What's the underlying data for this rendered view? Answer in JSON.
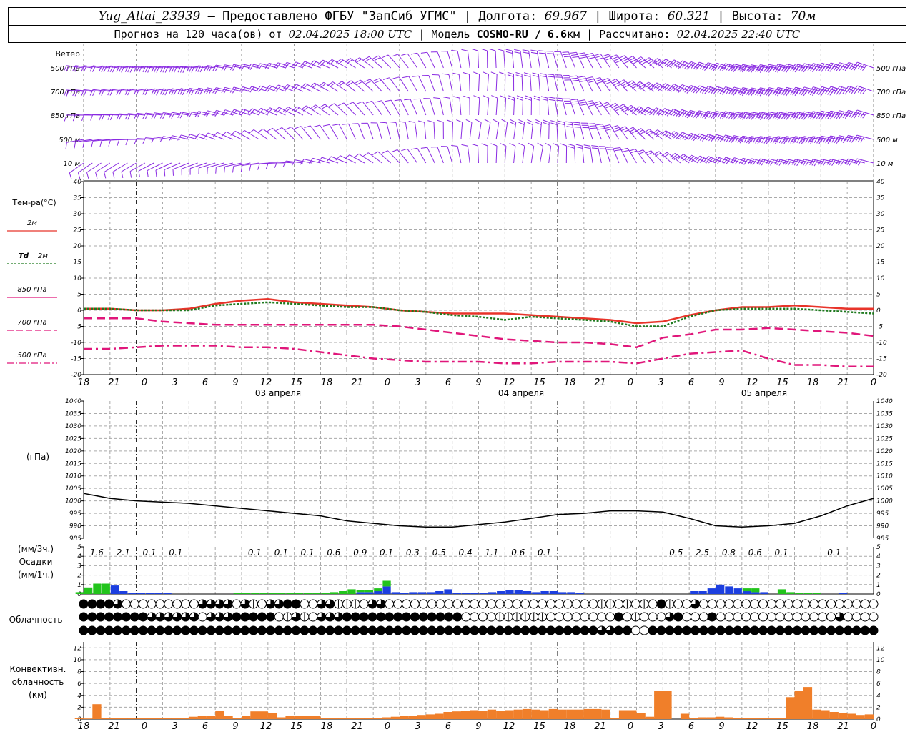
{
  "header": {
    "station": "Yug_Altai_23939",
    "provider": "– Предоставлено ФГБУ \"ЗапСиб УГМС\" |",
    "lon_label": "Долгота:",
    "lon": "69.967",
    "lat_label": "| Широта:",
    "lat": "60.321",
    "alt_label": "| Высота:",
    "alt": "70м",
    "fc_label": "Прогноз на 120 часа(ов) от",
    "fc_time": "02.04.2025 18:00 UTC",
    "model_label": "| Модель",
    "model": "COSMO-RU / 6.6",
    "model_unit": "км",
    "calc_label": "| Рассчитано:",
    "calc_time": "02.04.2025 22:40 UTC"
  },
  "colors": {
    "wind": "#8a2be2",
    "t2m": "#e8342a",
    "td2m": "#1e7a1e",
    "t850": "#e0167a",
    "t700": "#e0167a",
    "t500": "#e0167a",
    "precip_rain": "#1c3fe0",
    "precip_snow": "#22c41c",
    "conv": "#f07f2a"
  },
  "x_ticks": [
    "18",
    "21",
    "0",
    "3",
    "6",
    "9",
    "12",
    "15",
    "18",
    "21",
    "0",
    "3",
    "6",
    "9",
    "12",
    "15",
    "18",
    "21",
    "0",
    "3",
    "6",
    "9",
    "12",
    "15",
    "18",
    "21",
    "0"
  ],
  "day_labels": [
    "03 апреля",
    "04 апреля",
    "05 апреля"
  ],
  "wind": {
    "title": "Ветер",
    "levels": [
      "500 гПа",
      "700 гПа",
      "850 гПа",
      "500 м",
      "10 м"
    ]
  },
  "temp": {
    "title": "Тем-ра(°C)",
    "ylim": [
      -20,
      40
    ],
    "yticks": [
      "40",
      "35",
      "30",
      "25",
      "20",
      "15",
      "10",
      "5",
      "0",
      "-5",
      "-10",
      "-15",
      "-20"
    ],
    "legend": [
      {
        "label": "2м",
        "italic": ""
      },
      {
        "label": "2м",
        "italic": "Td"
      },
      {
        "label": "850 гПа",
        "italic": ""
      },
      {
        "label": "700 гПа",
        "italic": ""
      },
      {
        "label": "500 гПа",
        "italic": ""
      }
    ]
  },
  "pressure": {
    "title1": "Давление",
    "title2": "(гПа)",
    "ylim": [
      985,
      1040
    ],
    "yticks": [
      "1040",
      "1035",
      "1030",
      "1025",
      "1020",
      "1015",
      "1010",
      "1005",
      "1000",
      "995",
      "990",
      "985"
    ]
  },
  "precip": {
    "label_left1": "(мм/3ч.)",
    "label_left2": "Осадки",
    "label_left3": "(мм/1ч.)",
    "yticks": [
      "5",
      "4",
      "3",
      "2",
      "1",
      "0"
    ],
    "sums3h": [
      {
        "h": 3,
        "v": "1.6"
      },
      {
        "h": 6,
        "v": "2.1"
      },
      {
        "h": 9,
        "v": "0.1"
      },
      {
        "h": 12,
        "v": "0.1"
      },
      {
        "h": 21,
        "v": "0.1"
      },
      {
        "h": 24,
        "v": "0.1"
      },
      {
        "h": 27,
        "v": "0.1"
      },
      {
        "h": 30,
        "v": "0.6"
      },
      {
        "h": 33,
        "v": "0.9"
      },
      {
        "h": 36,
        "v": "0.1"
      },
      {
        "h": 39,
        "v": "0.3"
      },
      {
        "h": 42,
        "v": "0.5"
      },
      {
        "h": 45,
        "v": "0.4"
      },
      {
        "h": 48,
        "v": "1.1"
      },
      {
        "h": 51,
        "v": "0.6"
      },
      {
        "h": 54,
        "v": "0.1"
      },
      {
        "h": 69,
        "v": "0.5"
      },
      {
        "h": 72,
        "v": "2.5"
      },
      {
        "h": 75,
        "v": "0.8"
      },
      {
        "h": 78,
        "v": "0.6"
      },
      {
        "h": 81,
        "v": "0.1"
      },
      {
        "h": 87,
        "v": "0.1"
      }
    ]
  },
  "cloud": {
    "title": "Облачность"
  },
  "conv": {
    "title1": "Конвективн.",
    "title2": "облачность",
    "title3": "(км)",
    "yticks": [
      "12",
      "10",
      "8",
      "6",
      "4",
      "2",
      "0"
    ]
  },
  "chart_data": [
    {
      "type": "line",
      "title": "Тем-ра(°C)",
      "x_hours_from": "02.04.2025 18:00 UTC",
      "x": [
        0,
        3,
        6,
        9,
        12,
        15,
        18,
        21,
        24,
        27,
        30,
        33,
        36,
        39,
        42,
        45,
        48,
        51,
        54,
        57,
        60,
        63,
        66,
        69,
        72,
        75,
        78,
        81,
        84,
        87,
        90
      ],
      "ylim": [
        -20,
        40
      ],
      "series": [
        {
          "name": "2м",
          "values": [
            0.5,
            0.5,
            0,
            0,
            0.5,
            2,
            3,
            3.5,
            2.5,
            2,
            1.5,
            1,
            0,
            -0.5,
            -1,
            -1,
            -1,
            -1.5,
            -2,
            -2.5,
            -3,
            -4,
            -3.5,
            -1.5,
            0,
            1,
            1,
            1.5,
            1,
            0.5,
            0.5
          ]
        },
        {
          "name": "Td 2м",
          "values": [
            0.5,
            0.5,
            0,
            0,
            0,
            1.5,
            2,
            2.5,
            2,
            1.5,
            1,
            1,
            0,
            -0.5,
            -1.5,
            -2,
            -3,
            -2,
            -2.5,
            -3,
            -3.5,
            -5,
            -5,
            -2,
            0,
            0.5,
            0.5,
            0.5,
            0,
            -0.5,
            -1
          ]
        },
        {
          "name": "850 гПа",
          "values": [
            -2.5,
            -2.5,
            -2.5,
            -3.5,
            -4,
            -4.5,
            -4.5,
            -4.5,
            -4.5,
            -4.5,
            -4.5,
            -4.5,
            -5,
            -6,
            -7,
            -8,
            -9,
            -9.5,
            -10,
            -10,
            -10.5,
            -11.5,
            -8.5,
            -7.5,
            -6,
            -6,
            -5.5,
            -6,
            -6.5,
            -7,
            -8
          ]
        },
        {
          "name": "700 гПа",
          "values": [
            -2.5,
            -2.5,
            -2.5,
            -3.5,
            -4,
            -4.5,
            -4.5,
            -4.5,
            -4.5,
            -4.5,
            -4.5,
            -4.5,
            -5,
            -6,
            -7,
            -8,
            -9,
            -9.5,
            -10,
            -10,
            -10.5,
            -11.5,
            -8.5,
            -7.5,
            -6,
            -6,
            -5.5,
            -6,
            -6.5,
            -7,
            -8
          ]
        },
        {
          "name": "500 гПа",
          "values": [
            -12,
            -12,
            -11.5,
            -11,
            -11,
            -11,
            -11.5,
            -11.5,
            -12,
            -13,
            -14,
            -15,
            -15.5,
            -16,
            -16,
            -16,
            -16.5,
            -16.5,
            -16,
            -16,
            -16,
            -16.5,
            -15,
            -13.5,
            -13,
            -12.5,
            -15,
            -17,
            -17,
            -17.5,
            -17.5
          ]
        }
      ]
    },
    {
      "type": "line",
      "title": "Давление",
      "x": [
        0,
        3,
        6,
        9,
        12,
        15,
        18,
        21,
        24,
        27,
        30,
        33,
        36,
        39,
        42,
        45,
        48,
        51,
        54,
        57,
        60,
        63,
        66,
        69,
        72,
        75,
        78,
        81,
        84,
        87,
        90
      ],
      "ylim": [
        985,
        1040
      ],
      "series": [
        {
          "name": "Давление",
          "values": [
            1003,
            1001,
            1000,
            999.5,
            999,
            998,
            997,
            996,
            995,
            994,
            992,
            991,
            990,
            989.5,
            989.5,
            990.5,
            991.5,
            993,
            994.5,
            995,
            996,
            996,
            995.5,
            993,
            990,
            989.5,
            990,
            991,
            994,
            998,
            1001
          ]
        }
      ]
    },
    {
      "type": "bar",
      "title": "Осадки",
      "x": [
        0,
        1,
        2,
        3,
        4,
        5,
        6,
        7,
        8,
        9,
        10,
        11,
        12,
        13,
        14,
        15,
        16,
        17,
        18,
        19,
        20,
        21,
        22,
        23,
        24,
        25,
        26,
        27,
        28,
        29,
        30,
        31,
        32,
        33,
        34,
        35,
        36,
        37,
        38,
        39,
        40,
        41,
        42,
        43,
        44,
        45,
        46,
        47,
        48,
        49,
        50,
        51,
        52,
        53,
        54,
        55,
        56,
        57,
        58,
        59,
        60,
        61,
        62,
        63,
        64,
        65,
        66,
        67,
        68,
        69,
        70,
        71,
        72,
        73,
        74,
        75,
        76,
        77,
        78,
        79,
        80,
        81,
        82,
        83,
        84,
        85,
        86,
        87,
        88,
        89,
        90
      ],
      "series": [
        {
          "name": "green",
          "values": [
            0.2,
            0.7,
            1.1,
            1.1,
            0,
            0,
            0,
            0,
            0,
            0,
            0,
            0,
            0,
            0,
            0,
            0,
            0,
            0,
            0.1,
            0.1,
            0.1,
            0.1,
            0.1,
            0.1,
            0.1,
            0.1,
            0.1,
            0.1,
            0.1,
            0.2,
            0.3,
            0.5,
            0.2,
            0.2,
            0.3,
            0.6,
            0,
            0,
            0,
            0,
            0,
            0,
            0,
            0,
            0,
            0,
            0,
            0,
            0,
            0,
            0,
            0,
            0,
            0,
            0,
            0,
            0,
            0,
            0,
            0,
            0,
            0,
            0,
            0,
            0,
            0,
            0,
            0,
            0,
            0,
            0,
            0,
            0,
            0,
            0,
            0,
            0.3,
            0.4,
            0,
            0,
            0.5,
            0.2,
            0.1,
            0.1,
            0.1,
            0,
            0,
            0,
            0,
            0,
            0
          ]
        },
        {
          "name": "blue",
          "values": [
            0,
            0,
            0,
            0,
            0.9,
            0.3,
            0.1,
            0.1,
            0.1,
            0.1,
            0.1,
            0,
            0,
            0,
            0,
            0,
            0,
            0,
            0,
            0,
            0,
            0,
            0,
            0,
            0,
            0,
            0,
            0,
            0,
            0,
            0,
            0,
            0.2,
            0.2,
            0.3,
            0.8,
            0.2,
            0.1,
            0.2,
            0.2,
            0.2,
            0.3,
            0.5,
            0.1,
            0.1,
            0.1,
            0.1,
            0.2,
            0.3,
            0.4,
            0.4,
            0.3,
            0.2,
            0.3,
            0.3,
            0.2,
            0.2,
            0.1,
            0,
            0,
            0,
            0,
            0,
            0,
            0,
            0,
            0,
            0,
            0,
            0,
            0.3,
            0.3,
            0.6,
            1.0,
            0.8,
            0.6,
            0.3,
            0.2,
            0.2,
            0,
            0,
            0,
            0,
            0,
            0,
            0,
            0,
            0.1,
            0,
            0,
            0
          ]
        }
      ]
    },
    {
      "type": "bar",
      "title": "Конвективн. облачность (км)",
      "x": [
        0,
        1,
        2,
        3,
        4,
        5,
        6,
        7,
        8,
        9,
        10,
        11,
        12,
        13,
        14,
        15,
        16,
        17,
        18,
        19,
        20,
        21,
        22,
        23,
        24,
        25,
        26,
        27,
        28,
        29,
        30,
        31,
        32,
        33,
        34,
        35,
        36,
        37,
        38,
        39,
        40,
        41,
        42,
        43,
        44,
        45,
        46,
        47,
        48,
        49,
        50,
        51,
        52,
        53,
        54,
        55,
        56,
        57,
        58,
        59,
        60,
        61,
        62,
        63,
        64,
        65,
        66,
        67,
        68,
        69,
        70,
        71,
        72,
        73,
        74,
        75,
        76,
        77,
        78,
        79,
        80,
        81,
        82,
        83,
        84,
        85,
        86,
        87,
        88,
        89,
        90
      ],
      "ylim": [
        0,
        13
      ],
      "values": [
        0.2,
        0.1,
        2.5,
        0.2,
        0.2,
        0.2,
        0.2,
        0.2,
        0.2,
        0.2,
        0.2,
        0.2,
        0.2,
        0.4,
        0.5,
        0.5,
        1.4,
        0.6,
        0.2,
        0.6,
        1.3,
        1.3,
        1.0,
        0.3,
        0.6,
        0.6,
        0.6,
        0.6,
        0.2,
        0.2,
        0.2,
        0.2,
        0.2,
        0.2,
        0.2,
        0.3,
        0.4,
        0.5,
        0.6,
        0.7,
        0.8,
        0.9,
        1.2,
        1.3,
        1.4,
        1.5,
        1.4,
        1.6,
        1.4,
        1.5,
        1.6,
        1.7,
        1.6,
        1.5,
        1.7,
        1.6,
        1.6,
        1.6,
        1.7,
        1.7,
        1.6,
        0.2,
        1.5,
        1.5,
        1.0,
        0.4,
        4.8,
        4.8,
        0,
        0.9,
        0.2,
        0.3,
        0.3,
        0.4,
        0.3,
        0.2,
        0.2,
        0.2,
        0.2,
        0.2,
        0.2,
        3.7,
        4.8,
        5.4,
        1.6,
        1.5,
        1.2,
        1.0,
        0.9,
        0.7,
        0.8
      ]
    },
    {
      "type": "table",
      "title": "Облачность",
      "rows": [
        [
          4,
          4,
          4,
          4,
          3,
          2,
          2,
          2,
          2,
          2,
          2,
          2,
          2,
          2,
          3,
          3,
          3,
          3,
          2,
          3,
          1,
          1,
          3,
          3,
          4,
          4,
          2,
          2,
          3,
          3,
          1,
          1,
          1,
          2,
          3,
          3,
          2,
          2,
          2,
          2,
          2,
          2,
          2,
          2,
          2,
          2,
          2,
          2,
          2,
          2,
          2,
          2,
          2,
          2,
          2,
          2,
          2,
          2,
          2,
          2,
          2,
          1,
          1,
          2,
          1,
          2,
          1,
          2,
          4,
          1,
          2,
          2,
          3,
          2,
          2,
          2,
          2,
          2,
          2,
          2,
          2,
          2,
          2,
          2,
          2,
          2,
          2,
          2,
          2,
          2,
          2,
          2,
          2,
          2,
          2,
          2,
          2
        ],
        [
          4,
          4,
          4,
          4,
          4,
          4,
          4,
          4,
          3,
          3,
          3,
          3,
          3,
          3,
          2,
          3,
          3,
          3,
          4,
          4,
          4,
          4,
          4,
          2,
          1,
          3,
          1,
          2,
          3,
          3,
          3,
          4,
          4,
          4,
          4,
          4,
          4,
          4,
          4,
          4,
          4,
          4,
          4,
          4,
          4,
          2,
          2,
          2,
          2,
          1,
          1,
          1,
          1,
          1,
          1,
          2,
          2,
          2,
          2,
          2,
          2,
          2,
          2,
          4,
          2,
          1,
          2,
          2,
          2,
          3,
          4,
          2,
          2,
          2,
          4,
          2,
          2,
          2,
          2,
          2,
          2,
          2,
          2,
          2,
          2,
          2,
          2,
          2,
          2,
          3,
          2,
          2,
          2,
          2,
          2,
          3,
          2
        ],
        [
          4,
          4,
          4,
          4,
          4,
          4,
          4,
          4,
          4,
          4,
          4,
          4,
          4,
          4,
          4,
          4,
          4,
          4,
          4,
          4,
          4,
          4,
          4,
          4,
          4,
          4,
          4,
          4,
          4,
          4,
          4,
          4,
          4,
          4,
          4,
          4,
          4,
          4,
          4,
          4,
          4,
          4,
          4,
          4,
          4,
          4,
          4,
          4,
          4,
          4,
          4,
          4,
          4,
          4,
          4,
          4,
          4,
          4,
          4,
          4,
          4,
          3,
          3,
          4,
          4,
          2,
          2,
          4,
          4,
          4,
          4,
          4,
          4,
          4,
          4,
          4,
          4,
          4,
          4,
          4,
          4,
          4,
          4,
          4,
          4,
          4,
          4,
          4,
          4,
          4,
          4,
          4,
          4,
          4,
          4,
          4,
          4
        ]
      ]
    }
  ]
}
